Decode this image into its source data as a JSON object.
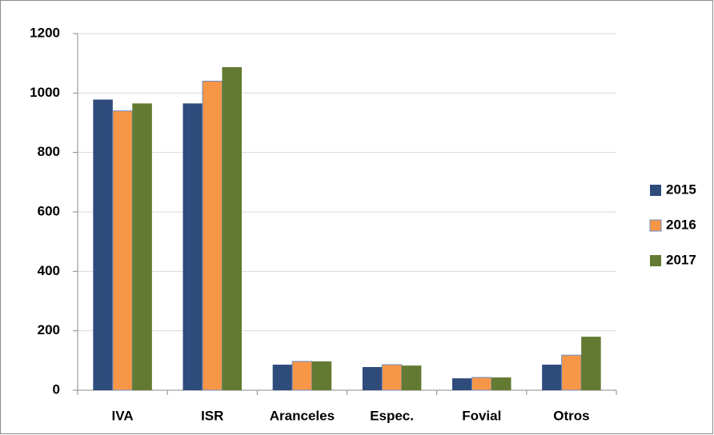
{
  "chart_data": {
    "type": "bar",
    "categories": [
      "IVA",
      "ISR",
      "Aranceles",
      "Espec.",
      "Fovial",
      "Otros"
    ],
    "series": [
      {
        "name": "2015",
        "color": "#2f4b7c",
        "values": [
          978,
          965,
          86,
          78,
          40,
          86
        ]
      },
      {
        "name": "2016",
        "color": "#f79646",
        "values": [
          940,
          1040,
          97,
          86,
          43,
          118
        ]
      },
      {
        "name": "2017",
        "color": "#627a32",
        "values": [
          965,
          1087,
          97,
          83,
          43,
          180
        ]
      }
    ],
    "ylim": [
      0,
      1200
    ],
    "yticks": [
      0,
      200,
      400,
      600,
      800,
      1000,
      1200
    ],
    "grid": true,
    "legend": "right"
  }
}
